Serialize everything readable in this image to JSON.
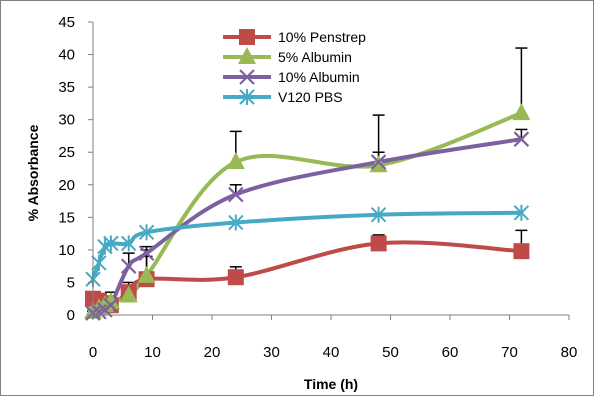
{
  "chart_data": {
    "type": "line",
    "xlabel": "Time (h)",
    "ylabel": "% Absorbance",
    "xlim": [
      0,
      80
    ],
    "ylim": [
      0,
      45
    ],
    "xticks": [
      "0",
      "10",
      "20",
      "30",
      "40",
      "50",
      "60",
      "70",
      "80"
    ],
    "yticks": [
      "0",
      "5",
      "10",
      "15",
      "20",
      "25",
      "30",
      "35",
      "40",
      "45"
    ],
    "grid": false,
    "smooth": true,
    "legend_position": "top-center",
    "series": [
      {
        "name": "10% Penstrep",
        "color": "#BE4B48",
        "marker": "square",
        "x": [
          0,
          1,
          2,
          3,
          6,
          9,
          24,
          48,
          72
        ],
        "y": [
          2.5,
          2.2,
          1.8,
          1.5,
          3.5,
          5.5,
          5.8,
          11.0,
          9.8
        ],
        "error_plus": [
          0.5,
          0.5,
          0.5,
          0.5,
          1.0,
          4.5,
          1.6,
          1.3,
          3.2
        ]
      },
      {
        "name": "5% Albumin",
        "color": "#98B954",
        "marker": "triangle",
        "x": [
          0,
          1,
          2,
          3,
          6,
          9,
          24,
          48,
          72
        ],
        "y": [
          0.5,
          1.0,
          1.5,
          2.0,
          3.0,
          6.0,
          23.5,
          23.0,
          31.0
        ],
        "error_plus": [
          0.5,
          0.5,
          0.5,
          1.5,
          2.0,
          3.0,
          4.7,
          7.7,
          10.0
        ]
      },
      {
        "name": "10% Albumin",
        "color": "#7D60A0",
        "marker": "x",
        "x": [
          0,
          1,
          2,
          3,
          6,
          9,
          24,
          48,
          72
        ],
        "y": [
          0.3,
          0.5,
          0.8,
          1.5,
          7.5,
          9.5,
          18.5,
          23.5,
          27.0
        ],
        "error_plus": [
          0.3,
          0.3,
          0.5,
          1.0,
          2.0,
          1.0,
          1.5,
          1.5,
          1.5
        ]
      },
      {
        "name": "V120 PBS",
        "color": "#46AAC5",
        "marker": "star",
        "x": [
          0,
          1,
          2,
          3,
          6,
          9,
          24,
          48,
          72
        ],
        "y": [
          5.5,
          8.0,
          10.5,
          11.0,
          11.0,
          12.7,
          14.2,
          15.4,
          15.7
        ],
        "error_plus": [
          0,
          0,
          0,
          0,
          0,
          0,
          0,
          0,
          0
        ]
      }
    ]
  }
}
